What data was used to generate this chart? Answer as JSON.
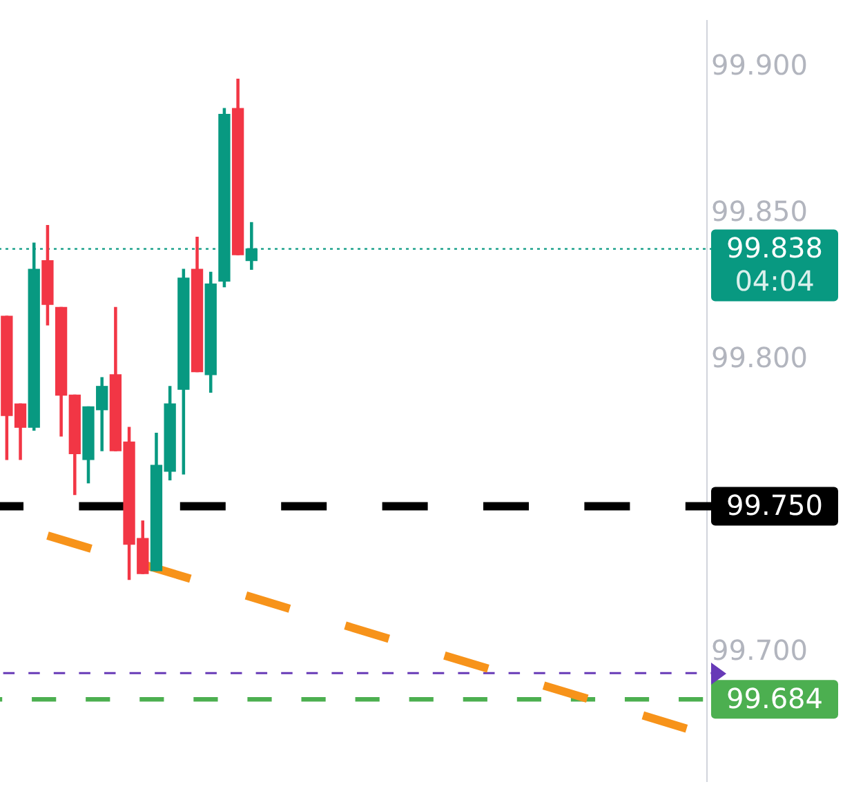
{
  "chart_data": {
    "type": "candlestick",
    "categories": [
      null,
      null,
      null,
      null,
      null,
      null,
      null,
      null,
      null,
      null,
      null,
      null,
      null,
      null,
      null,
      null,
      null,
      null,
      null,
      null,
      null,
      null,
      null,
      null,
      null,
      null,
      null,
      null,
      null,
      null,
      null,
      null,
      null,
      null,
      null,
      null,
      null,
      null,
      null,
      null,
      null,
      null,
      null,
      null,
      null,
      null,
      null,
      null,
      null,
      null,
      null,
      null
    ],
    "ohlc": [
      [
        99.815,
        99.815,
        99.766,
        99.781
      ],
      [
        99.785,
        99.785,
        99.766,
        99.777
      ],
      [
        99.777,
        99.84,
        99.776,
        99.831
      ],
      [
        99.834,
        99.846,
        99.812,
        99.819
      ],
      [
        99.818,
        99.818,
        99.774,
        99.788
      ],
      [
        99.788,
        99.788,
        99.754,
        99.768
      ],
      [
        99.766,
        99.784,
        99.758,
        99.784
      ],
      [
        99.783,
        99.794,
        99.769,
        99.791
      ],
      [
        99.795,
        99.818,
        99.769,
        99.769
      ],
      [
        99.772,
        99.777,
        99.725,
        99.737
      ],
      [
        99.739,
        99.745,
        99.727,
        99.727
      ],
      [
        99.728,
        99.775,
        99.728,
        99.764
      ],
      [
        99.762,
        99.791,
        99.759,
        99.785
      ],
      [
        99.79,
        99.831,
        99.761,
        99.828
      ],
      [
        99.831,
        99.842,
        99.796,
        99.796
      ],
      [
        99.795,
        99.83,
        99.789,
        99.826
      ],
      [
        99.827,
        99.886,
        99.825,
        99.884
      ],
      [
        99.886,
        99.896,
        99.836,
        99.836
      ],
      [
        99.834,
        99.847,
        99.831,
        99.838
      ],
      null,
      null,
      null,
      null,
      null,
      null,
      null,
      null,
      null,
      null,
      null,
      null,
      null,
      null,
      null,
      null,
      null,
      null,
      null,
      null,
      null,
      null,
      null,
      null,
      null,
      null,
      null,
      null,
      null,
      null,
      null,
      null,
      null
    ],
    "colors": [
      "#f23645",
      "#f23645",
      "#089981",
      "#f23645",
      "#f23645",
      "#f23645",
      "#089981",
      "#089981",
      "#f23645",
      "#f23645",
      "#f23645",
      "#089981",
      "#089981",
      "#089981",
      "#f23645",
      "#089981",
      "#089981",
      "#f23645",
      "#089981",
      null,
      null,
      null,
      null,
      null,
      null,
      null,
      null,
      null,
      null,
      null,
      null,
      null,
      null,
      null,
      null,
      null,
      null,
      null,
      null,
      null,
      null,
      null,
      null,
      null,
      null,
      null,
      null,
      null,
      null,
      null,
      null,
      null
    ],
    "series": [
      {
        "type": "line",
        "color": "#f7931a",
        "line_style": "dashed",
        "values": [
          null,
          null,
          null,
          99.74,
          null,
          null,
          null,
          null,
          null,
          null,
          null,
          null,
          null,
          null,
          null,
          null,
          null,
          null,
          null,
          null,
          null,
          null,
          null,
          null,
          null,
          null,
          null,
          null,
          null,
          null,
          null,
          null,
          null,
          null,
          null,
          null,
          null,
          null,
          null,
          null,
          null,
          null,
          null,
          null,
          null,
          null,
          null,
          null,
          null,
          null,
          99.674,
          null
        ]
      }
    ],
    "ylim": [
      99.656,
      99.916
    ],
    "yticks": [
      {
        "value": 99.9,
        "label": "99.900"
      },
      {
        "value": 99.85,
        "label": "99.850"
      },
      {
        "value": 99.8,
        "label": "99.800"
      },
      {
        "value": 99.7,
        "label": "99.700"
      }
    ],
    "tick_labels": "y",
    "ref_lines": [
      {
        "axis": "y",
        "value": 99.838,
        "label": "99.838",
        "color": "#089981",
        "line_style": "dotted"
      },
      {
        "axis": "y",
        "value": 99.75,
        "label": "99.750",
        "color": "#000000",
        "line_style": "dashed"
      },
      {
        "axis": "y",
        "value": 99.693,
        "color": "#673ab7",
        "line_style": "dashed"
      },
      {
        "axis": "y",
        "value": 99.684,
        "label": "99.684",
        "color": "#4caf50",
        "line_style": "dashed"
      }
    ],
    "annotations": [
      "04:04"
    ]
  }
}
